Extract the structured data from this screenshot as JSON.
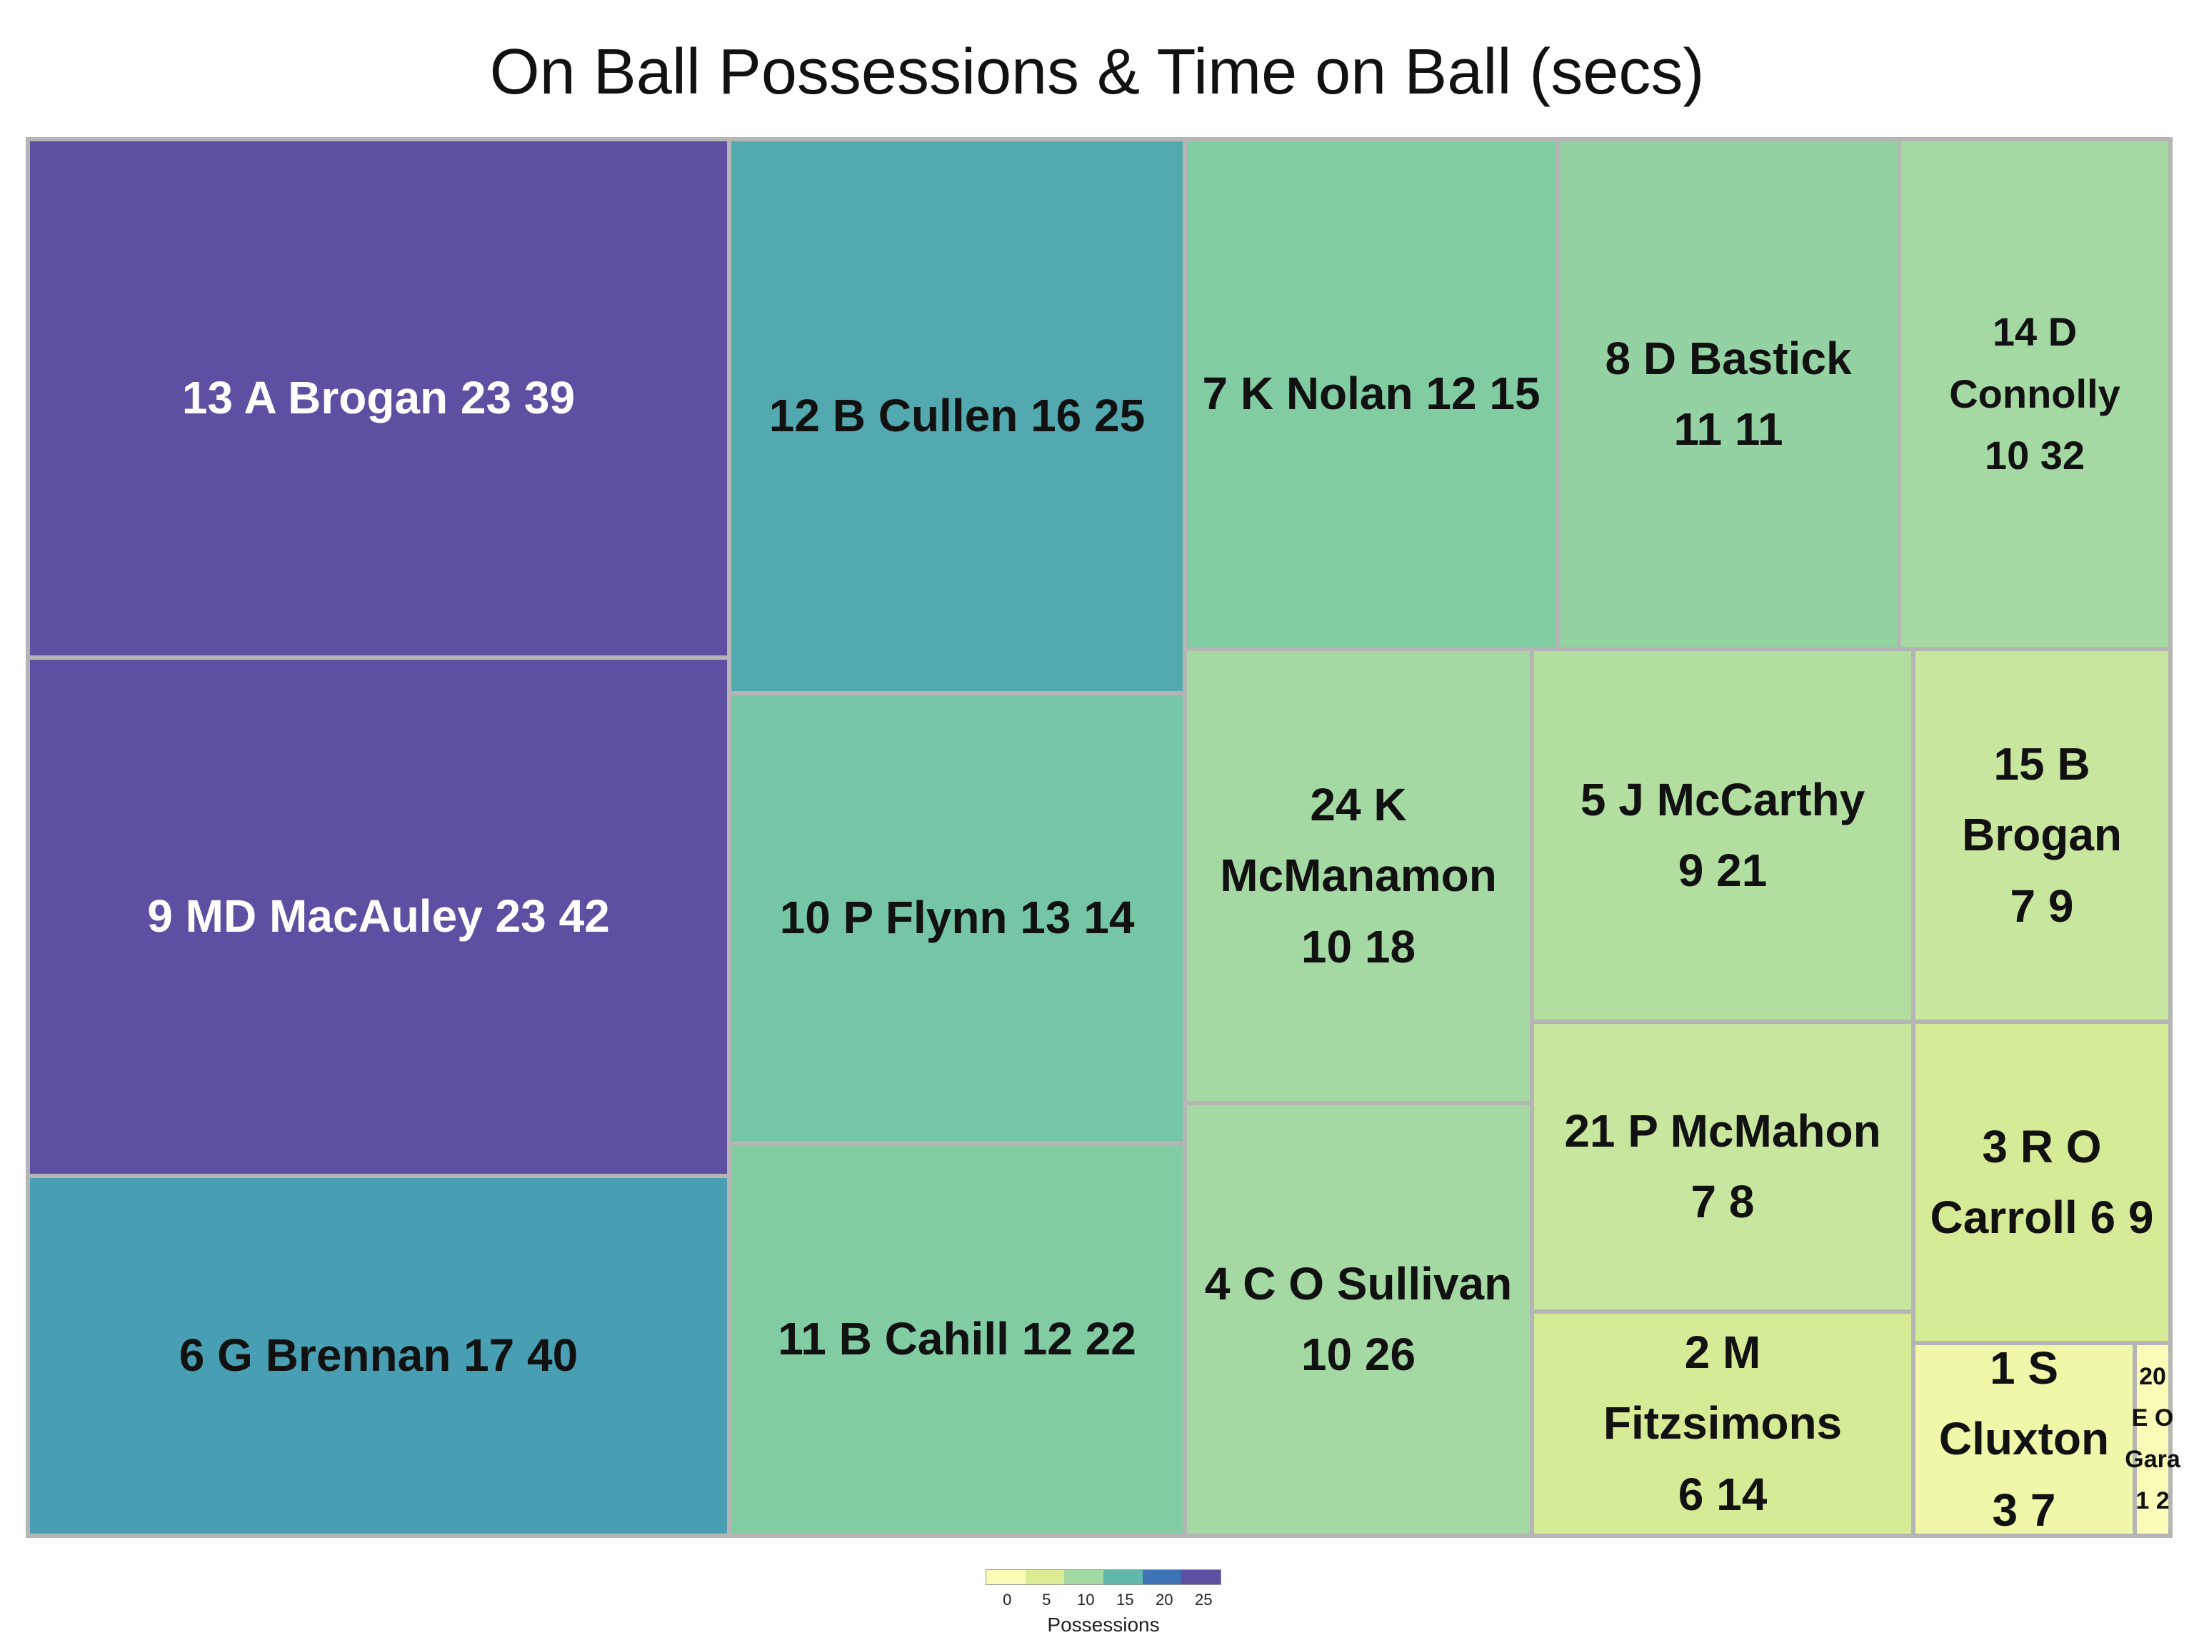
{
  "chart_data": {
    "type": "treemap",
    "title": "On Ball Possessions & Time on Ball (secs)",
    "size_variable": "Possessions",
    "color_variable": "Possessions",
    "tiles": [
      {
        "label": "13 A Brogan 23 39",
        "player": "13 A Brogan",
        "possessions": 23,
        "time_on_ball": 39,
        "color": "#5E4FA2"
      },
      {
        "label": "9 MD MacAuley 23 42",
        "player": "9 MD MacAuley",
        "possessions": 23,
        "time_on_ball": 42,
        "color": "#5E4FA2"
      },
      {
        "label": "6 G Brennan 17 40",
        "player": "6 G Brennan",
        "possessions": 17,
        "time_on_ball": 40,
        "color": "#489FB3"
      },
      {
        "label": "12 B Cullen 16 25",
        "player": "12 B Cullen",
        "possessions": 16,
        "time_on_ball": 25,
        "color": "#52A9AF"
      },
      {
        "label": "10 P Flynn 13 14",
        "player": "10 P Flynn",
        "possessions": 13,
        "time_on_ball": 14,
        "color": "#74C6A4"
      },
      {
        "label": "11 B Cahill 12 22",
        "player": "11 B Cahill",
        "possessions": 12,
        "time_on_ball": 22,
        "color": "#82CCA3"
      },
      {
        "label": "7 K Nolan 12 15",
        "player": "7 K Nolan",
        "possessions": 12,
        "time_on_ball": 15,
        "color": "#82CCA3"
      },
      {
        "label": "8 D Bastick 11 11",
        "player": "8 D Bastick",
        "possessions": 11,
        "time_on_ball": 11,
        "color": "#94D2A3"
      },
      {
        "label": "14 D Connolly 10 32",
        "player": "14 D Connolly",
        "possessions": 10,
        "time_on_ball": 32,
        "color": "#A4D9A3"
      },
      {
        "label": "24 K McManamon 10 18",
        "player": "24 K McManamon",
        "possessions": 10,
        "time_on_ball": 18,
        "color": "#A4D9A3"
      },
      {
        "label": "4 C O Sullivan 10 26",
        "player": "4 C O Sullivan",
        "possessions": 10,
        "time_on_ball": 26,
        "color": "#A4D9A3"
      },
      {
        "label": "5 J McCarthy 9 21",
        "player": "5 J McCarthy",
        "possessions": 9,
        "time_on_ball": 21,
        "color": "#B2DF9F"
      },
      {
        "label": "15 B Brogan 7 9",
        "player": "15 B Brogan",
        "possessions": 7,
        "time_on_ball": 9,
        "color": "#C8E69D"
      },
      {
        "label": "21 P McMahon 7 8",
        "player": "21 P McMahon",
        "possessions": 7,
        "time_on_ball": 8,
        "color": "#C8E69D"
      },
      {
        "label": "3 R O Carroll 6 9",
        "player": "3 R O Carroll",
        "possessions": 6,
        "time_on_ball": 9,
        "color": "#D6EB96"
      },
      {
        "label": "2 M Fitzsimons 6 14",
        "player": "2 M Fitzsimons",
        "possessions": 6,
        "time_on_ball": 14,
        "color": "#D6EB96"
      },
      {
        "label": "1 S Cluxton 3 7",
        "player": "1 S Cluxton",
        "possessions": 3,
        "time_on_ball": 7,
        "color": "#F0F7A8"
      },
      {
        "label": "20 E O Gara 1 2",
        "player": "20 E O Gara",
        "possessions": 1,
        "time_on_ball": 2,
        "color": "#FBFBB8"
      }
    ],
    "legend": {
      "title": "Possessions",
      "ticks": [
        "0",
        "5",
        "10",
        "15",
        "20",
        "25"
      ],
      "colors": [
        "#FBFBB8",
        "#DCEC95",
        "#A4D9A3",
        "#5FB8AA",
        "#3D72B4",
        "#5E4FA2"
      ],
      "placement": "bottom-center"
    }
  }
}
